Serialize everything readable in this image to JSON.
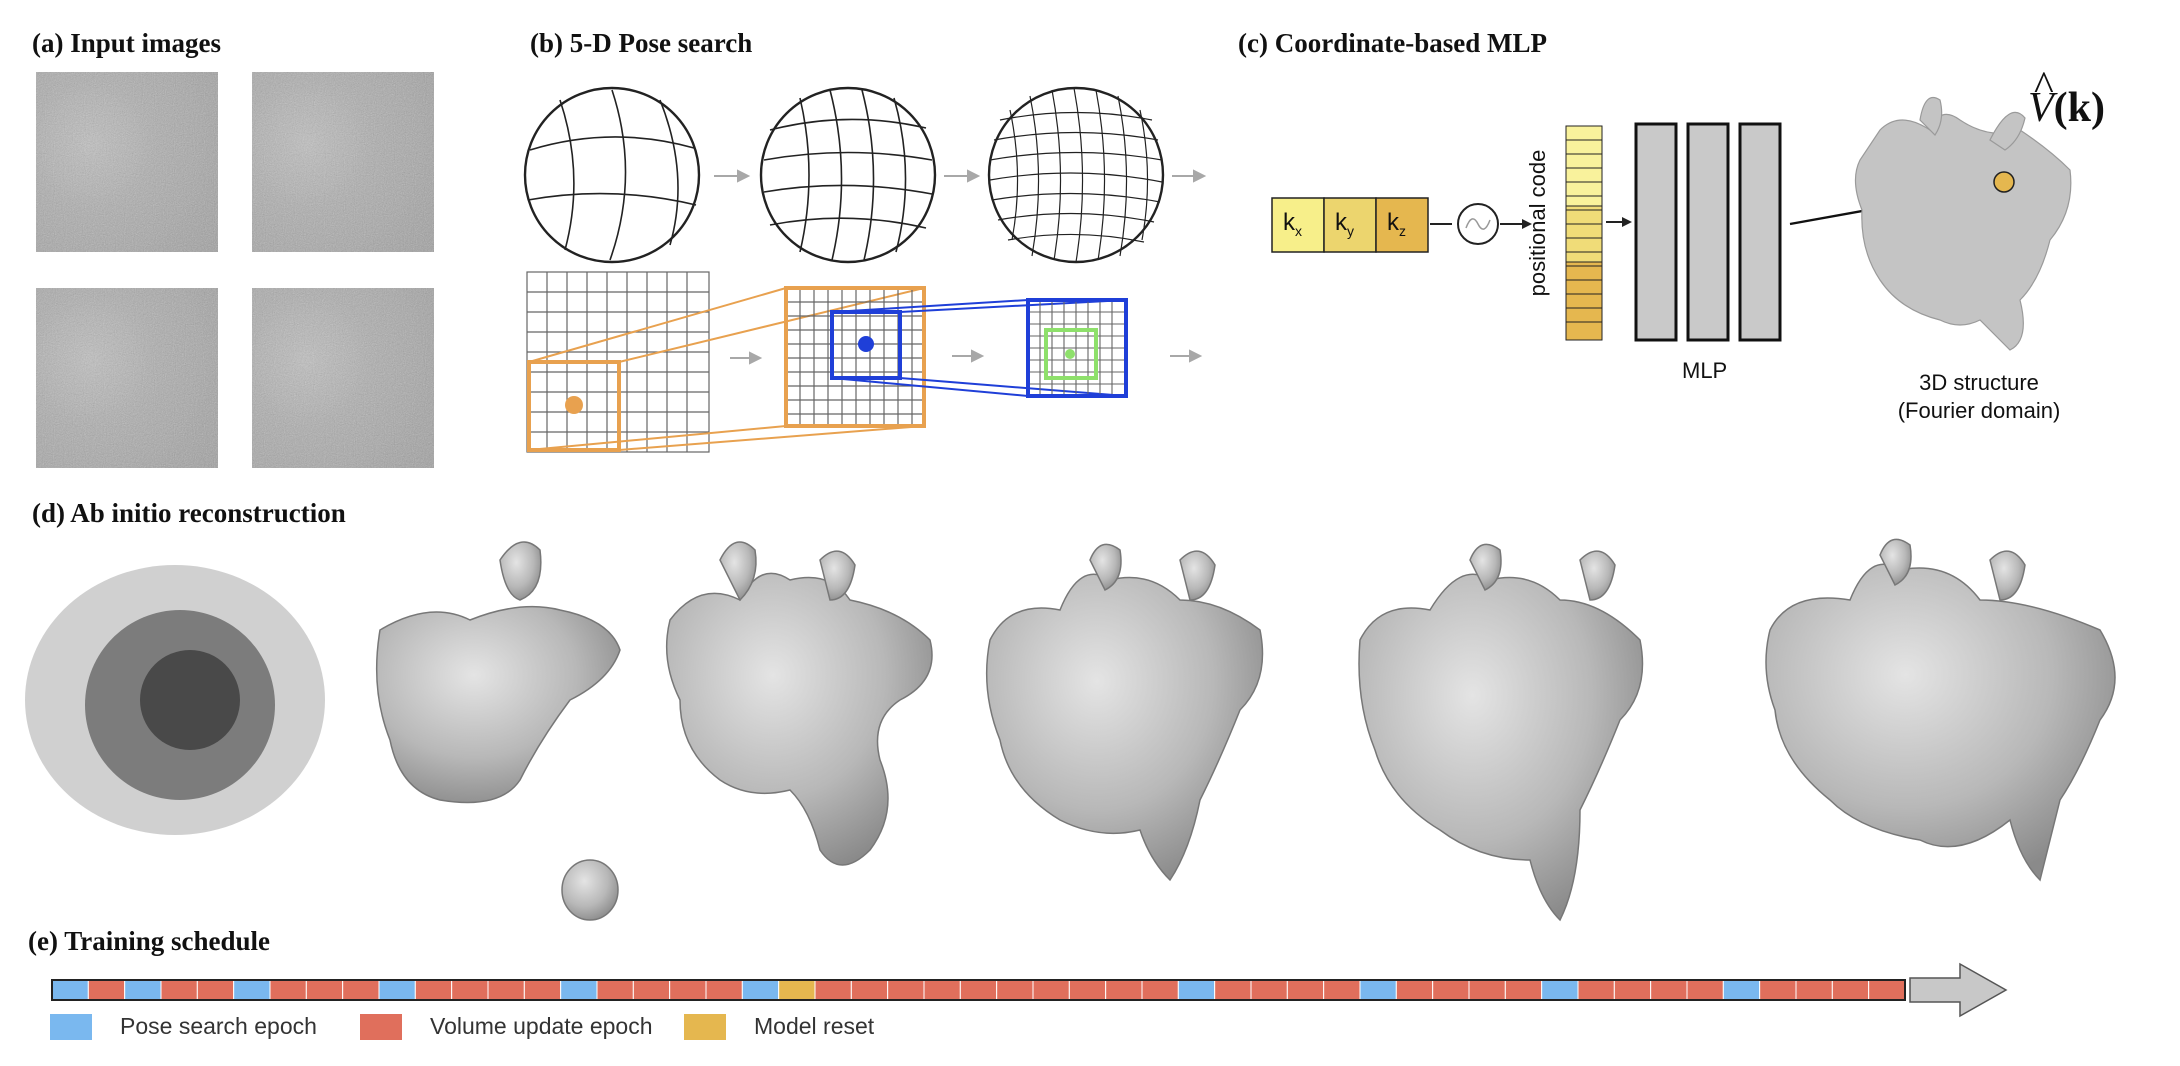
{
  "panels": {
    "a": "(a) Input images",
    "b": "(b) 5-D Pose search",
    "c": "(c) Coordinate-based MLP",
    "d": "(d) Ab initio reconstruction",
    "e": "(e) Training schedule"
  },
  "mlp": {
    "k_labels": [
      "k",
      "k",
      "k"
    ],
    "k_subscripts": [
      "x",
      "y",
      "z"
    ],
    "positional_code_label": "positional code",
    "mlp_label": "MLP",
    "structure_label_line1": "3D structure",
    "structure_label_line2": "(Fourier domain)",
    "volume_symbol": "V",
    "volume_arg": "(k)"
  },
  "schedule": {
    "epochs": [
      "pose",
      "volume",
      "pose",
      "volume",
      "volume",
      "pose",
      "volume",
      "volume",
      "volume",
      "pose",
      "volume",
      "volume",
      "volume",
      "volume",
      "pose",
      "volume",
      "volume",
      "volume",
      "volume",
      "pose",
      "reset",
      "volume",
      "volume",
      "volume",
      "volume",
      "volume",
      "volume",
      "volume",
      "volume",
      "volume",
      "volume",
      "pose",
      "volume",
      "volume",
      "volume",
      "volume",
      "pose",
      "volume",
      "volume",
      "volume",
      "volume",
      "pose",
      "volume",
      "volume",
      "volume",
      "volume",
      "pose",
      "volume",
      "volume",
      "volume",
      "volume"
    ],
    "legend": [
      {
        "key": "pose",
        "label": "Pose search epoch",
        "color": "#7ab8ef"
      },
      {
        "key": "volume",
        "label": "Volume update epoch",
        "color": "#e06f5c"
      },
      {
        "key": "reset",
        "label": "Model reset",
        "color": "#e5b74f"
      }
    ]
  },
  "colors": {
    "orange": "#e8a14f",
    "blue": "#1f3fd8",
    "green": "#8ee06b",
    "yellow_light": "#f7ef8a",
    "yellow_dark": "#e5b74f",
    "grey_arrow": "#a8a8a8",
    "mlp_block": "#c9c9c9"
  }
}
